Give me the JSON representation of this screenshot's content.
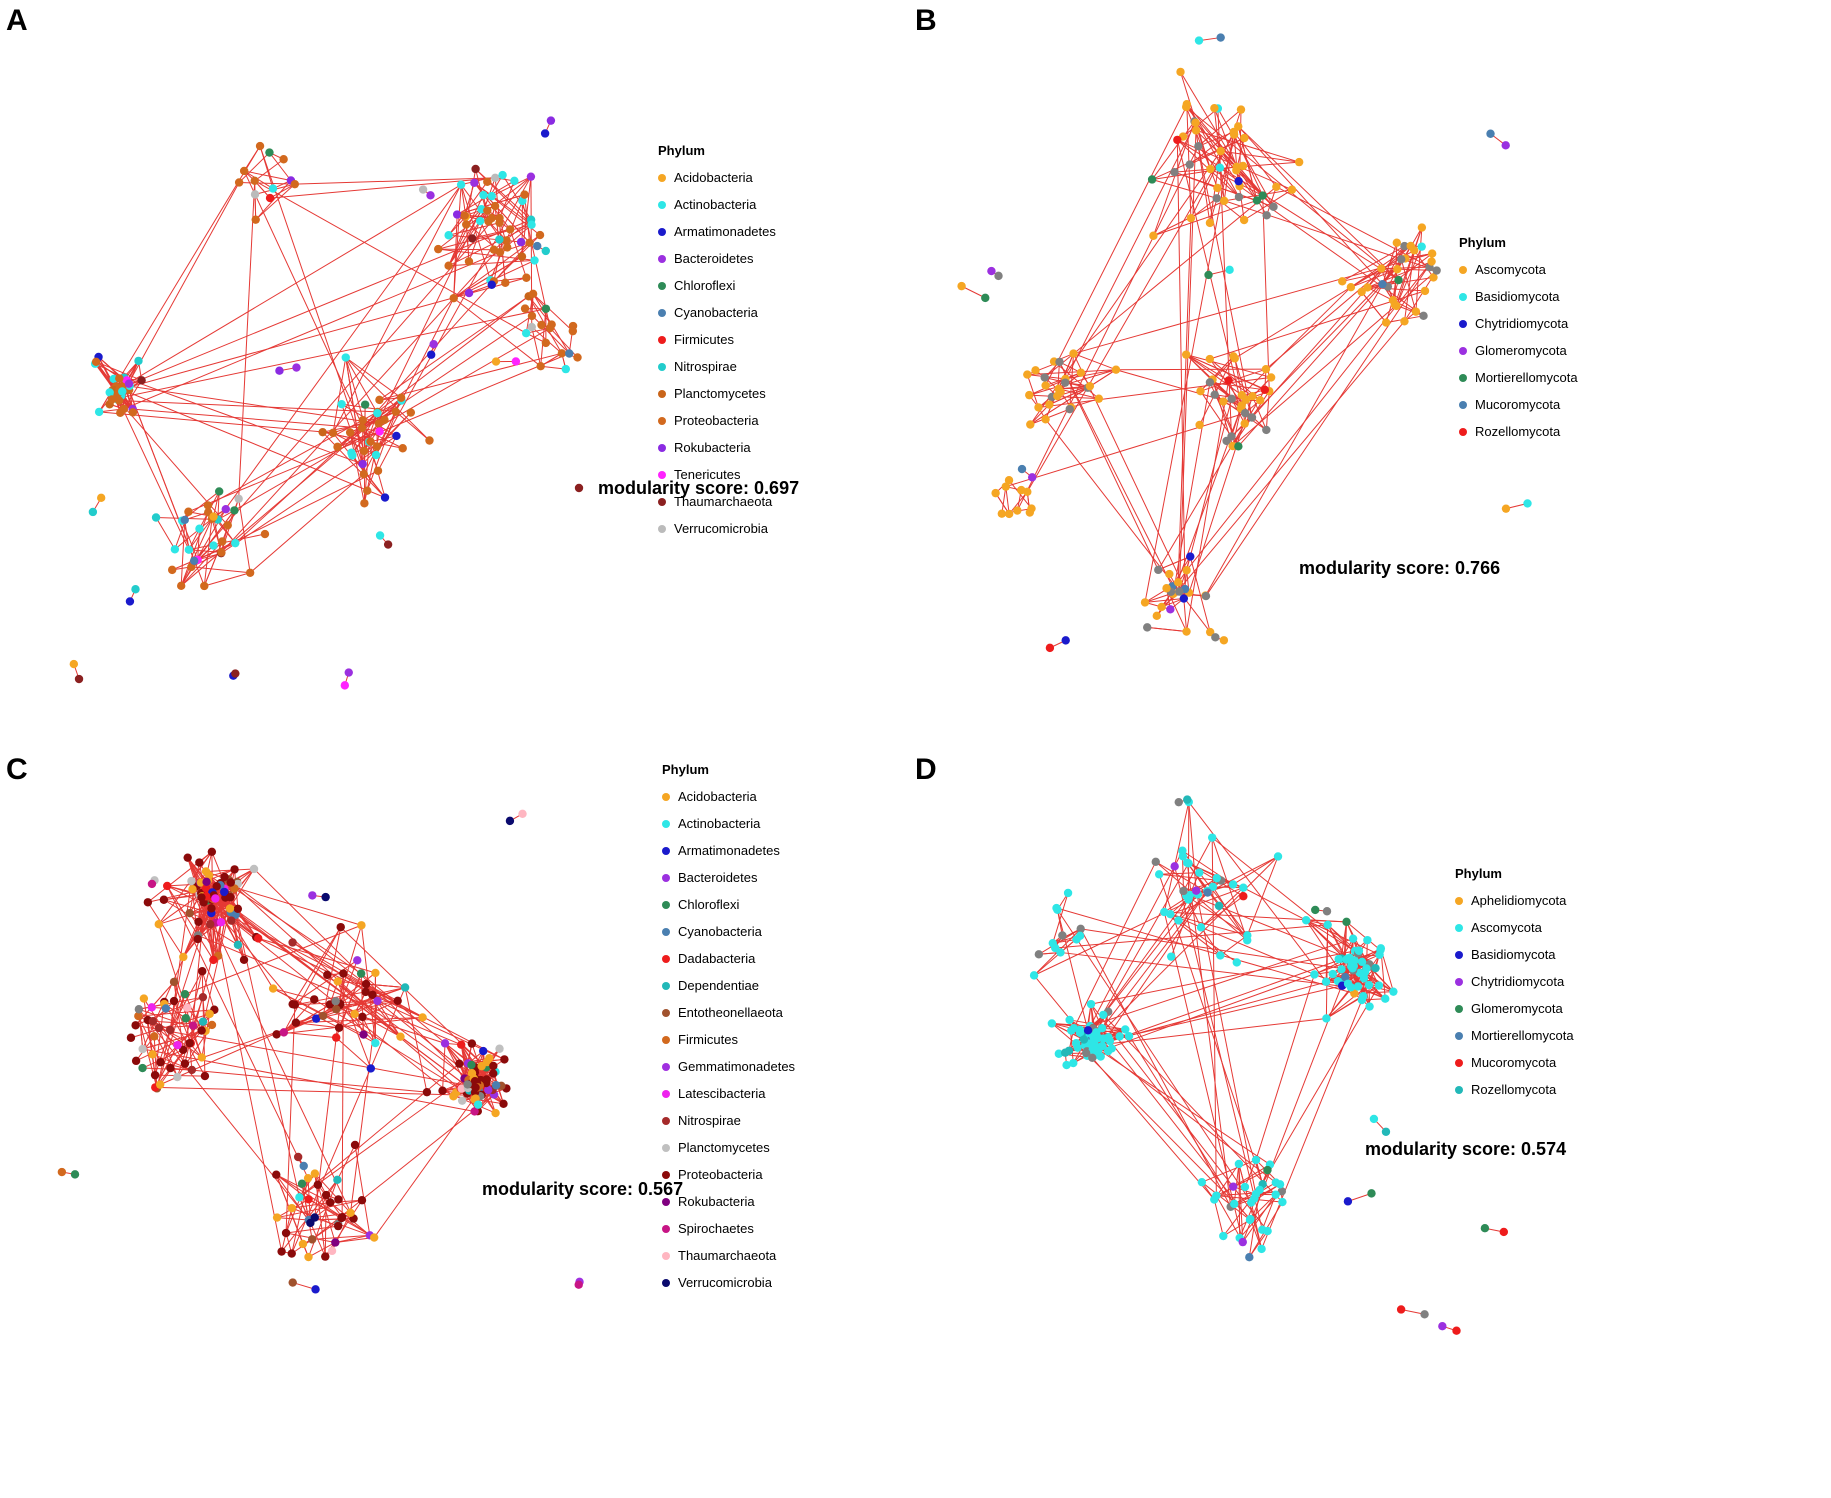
{
  "panels": [
    {
      "label": "A",
      "legend_title": "Phylum",
      "legend": [
        {
          "name": "Acidobacteria",
          "color": "#f5a623"
        },
        {
          "name": "Actinobacteria",
          "color": "#2ee6e6"
        },
        {
          "name": "Armatimonadetes",
          "color": "#1a1acc"
        },
        {
          "name": "Bacteroidetes",
          "color": "#9b30e0"
        },
        {
          "name": "Chloroflexi",
          "color": "#2e8b57"
        },
        {
          "name": "Cyanobacteria",
          "color": "#4a7fb0"
        },
        {
          "name": "Firmicutes",
          "color": "#ee1c1c"
        },
        {
          "name": "Nitrospirae",
          "color": "#22cccc"
        },
        {
          "name": "Planctomycetes",
          "color": "#c9651a"
        },
        {
          "name": "Proteobacteria",
          "color": "#d2691e"
        },
        {
          "name": "Rokubacteria",
          "color": "#8a2be2"
        },
        {
          "name": "Tenericutes",
          "color": "#ff22ff"
        },
        {
          "name": "Thaumarchaeota",
          "color": "#8b2020"
        },
        {
          "name": "Verrucomicrobia",
          "color": "#bbbbbb"
        }
      ],
      "extra_colors": [
        "#808080"
      ],
      "modularity": "modularity score: 0.697"
    },
    {
      "label": "B",
      "legend_title": "Phylum",
      "legend": [
        {
          "name": "Ascomycota",
          "color": "#f5a623"
        },
        {
          "name": "Basidiomycota",
          "color": "#2ee6e6"
        },
        {
          "name": "Chytridiomycota",
          "color": "#1a1acc"
        },
        {
          "name": "Glomeromycota",
          "color": "#9b30e0"
        },
        {
          "name": "Mortierellomycota",
          "color": "#2e8b57"
        },
        {
          "name": "Mucoromycota",
          "color": "#4a7fb0"
        },
        {
          "name": "Rozellomycota",
          "color": "#ee1c1c"
        }
      ],
      "extra_colors": [
        "#808080"
      ],
      "modularity": "modularity score: 0.766"
    },
    {
      "label": "C",
      "legend_title": "Phylum",
      "legend": [
        {
          "name": "Acidobacteria",
          "color": "#f5a623"
        },
        {
          "name": "Actinobacteria",
          "color": "#2ee6e6"
        },
        {
          "name": "Armatimonadetes",
          "color": "#1a1acc"
        },
        {
          "name": "Bacteroidetes",
          "color": "#9b30e0"
        },
        {
          "name": "Chloroflexi",
          "color": "#2e8b57"
        },
        {
          "name": "Cyanobacteria",
          "color": "#4a7fb0"
        },
        {
          "name": "Dadabacteria",
          "color": "#ee1c1c"
        },
        {
          "name": "Dependentiae",
          "color": "#22b8b8"
        },
        {
          "name": "Entotheonellaeota",
          "color": "#a0522d"
        },
        {
          "name": "Firmicutes",
          "color": "#d2691e"
        },
        {
          "name": "Gemmatimonadetes",
          "color": "#a030e0"
        },
        {
          "name": "Latescibacteria",
          "color": "#ee22ee"
        },
        {
          "name": "Nitrospirae",
          "color": "#a52a2a"
        },
        {
          "name": "Planctomycetes",
          "color": "#c0c0c0"
        },
        {
          "name": "Proteobacteria",
          "color": "#8b0a0a"
        },
        {
          "name": "Rokubacteria",
          "color": "#800080"
        },
        {
          "name": "Spirochaetes",
          "color": "#c71585"
        },
        {
          "name": "Thaumarchaeota",
          "color": "#ffb6c1"
        },
        {
          "name": "Verrucomicrobia",
          "color": "#0a0a6e"
        }
      ],
      "extra_colors": [
        "#808080"
      ],
      "modularity": "modularity score: 0.567"
    },
    {
      "label": "D",
      "legend_title": "Phylum",
      "legend": [
        {
          "name": "Aphelidiomycota",
          "color": "#f5a623"
        },
        {
          "name": "Ascomycota",
          "color": "#2ee6e6"
        },
        {
          "name": "Basidiomycota",
          "color": "#1a1acc"
        },
        {
          "name": "Chytridiomycota",
          "color": "#9b30e0"
        },
        {
          "name": "Glomeromycota",
          "color": "#2e8b57"
        },
        {
          "name": "Mortierellomycota",
          "color": "#4a7fb0"
        },
        {
          "name": "Mucoromycota",
          "color": "#ee1c1c"
        },
        {
          "name": "Rozellomycota",
          "color": "#22b8b8"
        }
      ],
      "extra_colors": [
        "#808080"
      ],
      "modularity": "modularity score: 0.574"
    }
  ],
  "edge_color": "#e53935"
}
